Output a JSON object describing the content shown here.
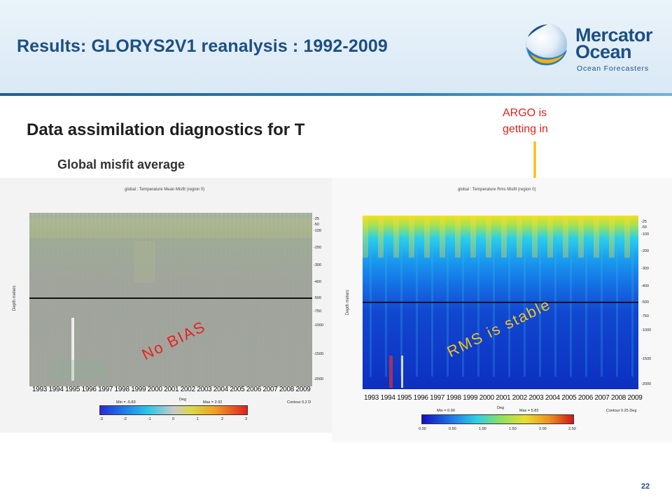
{
  "header": {
    "title": "Results: GLORYS2V1 reanalysis :  1992-2009",
    "logo_line1": "Mercator",
    "logo_line2": "Ocean",
    "logo_tagline": "Ocean Forecasters"
  },
  "content": {
    "subtitle": "Data assimilation diagnostics for T",
    "subsubtitle": "Global misfit average",
    "argo_line1": "ARGO is",
    "argo_line2": "getting in",
    "no_bias": "No BIAS",
    "rms_stable": "RMS is stable"
  },
  "left_plot": {
    "title": "global : Temperature Mean Misfit  (region 0)",
    "ylabel": "Depth meters",
    "yticks": [
      "-25",
      "-50",
      "-100",
      "-200",
      "-300",
      "-400",
      "-500",
      "-750",
      "-1000",
      "-1500",
      "-2000"
    ],
    "years": [
      "1993",
      "1994",
      "1995",
      "1996",
      "1997",
      "1998",
      "1999",
      "2000",
      "2001",
      "2002",
      "2003",
      "2004",
      "2005",
      "2006",
      "2007",
      "2008",
      "2009"
    ],
    "cbar_min": "Min = -5.83",
    "cbar_unit": "Deg",
    "cbar_max": "Max = 2.92",
    "cbar_contour": "Contour  0.2 D",
    "cbar_ticks": [
      "-3",
      "-2",
      "-1",
      "0",
      "1",
      "2",
      "3"
    ]
  },
  "right_plot": {
    "title": "global : Temperature Rms Misfit  (region 0)",
    "ylabel": "Depth meters",
    "yticks": [
      "-25",
      "-50",
      "-100",
      "-200",
      "-300",
      "-400",
      "-500",
      "-750",
      "-1000",
      "-1500",
      "-2000"
    ],
    "years": [
      "1993",
      "1994",
      "1995",
      "1996",
      "1997",
      "1998",
      "1999",
      "2000",
      "2001",
      "2002",
      "2003",
      "2004",
      "2005",
      "2006",
      "2007",
      "2008",
      "2009"
    ],
    "cbar_min": "Min = 0.00",
    "cbar_unit": "Deg",
    "cbar_max": "Max = 5.83",
    "cbar_contour": "Contour  0.25 Deg",
    "cbar_ticks": [
      "0.00",
      "0.50",
      "1.00",
      "1.50",
      "2.00",
      "2.50"
    ]
  },
  "footer": {
    "page_number": "22"
  },
  "colors": {
    "title_blue": "#1d4f83",
    "annotation_red": "#e6221e",
    "annotation_yellow": "#f4c21b"
  }
}
